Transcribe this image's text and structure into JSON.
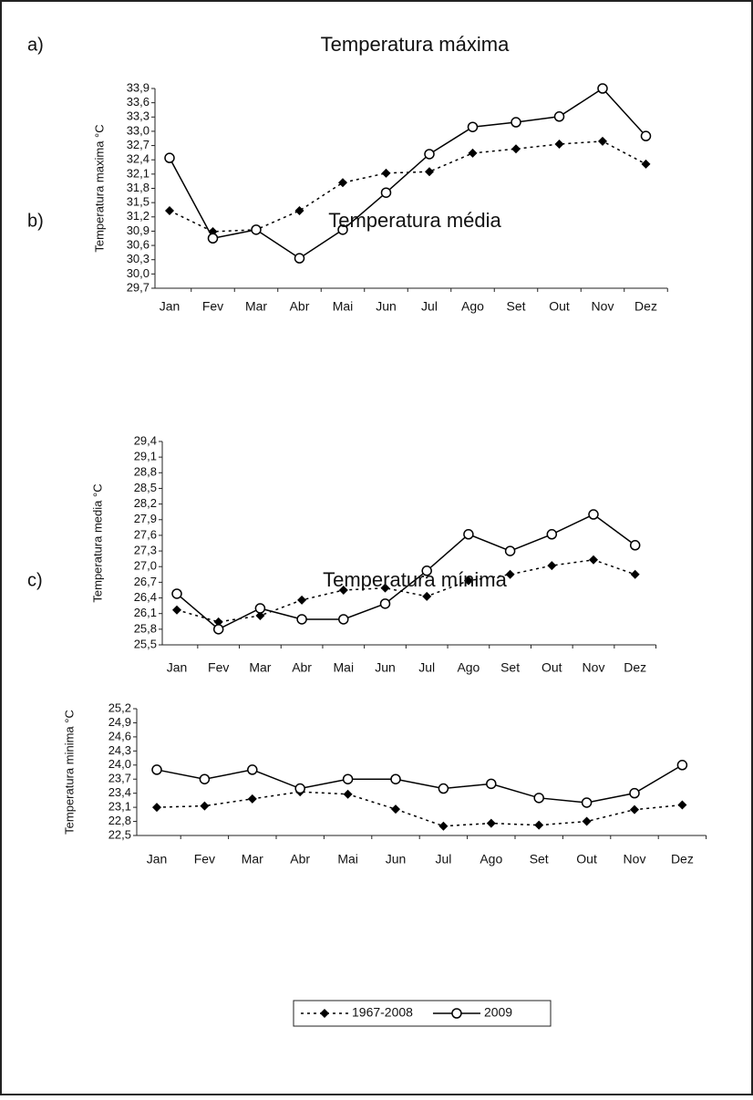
{
  "chart_data": [
    {
      "type": "line",
      "panel": "a)",
      "title": "Temperatura máxima",
      "y_label": "Temperatura maxima °C",
      "categories": [
        "Jan",
        "Fev",
        "Mar",
        "Abr",
        "Mai",
        "Jun",
        "Jul",
        "Ago",
        "Set",
        "Out",
        "Nov",
        "Dez"
      ],
      "ylim": [
        29.7,
        33.9
      ],
      "yticks": [
        {
          "value": 29.7,
          "label": "29,7"
        },
        {
          "value": 30.0,
          "label": "30,0"
        },
        {
          "value": 30.3,
          "label": "30,3"
        },
        {
          "value": 30.6,
          "label": "30,6"
        },
        {
          "value": 30.9,
          "label": "30,9"
        },
        {
          "value": 31.2,
          "label": "31,2"
        },
        {
          "value": 31.5,
          "label": "31,5"
        },
        {
          "value": 31.8,
          "label": "31,8"
        },
        {
          "value": 32.1,
          "label": "32,1"
        },
        {
          "value": 32.4,
          "label": "32,4"
        },
        {
          "value": 32.7,
          "label": "32,7"
        },
        {
          "value": 33.0,
          "label": "33,0"
        },
        {
          "value": 33.3,
          "label": "33,3"
        },
        {
          "value": 33.6,
          "label": "33,6"
        },
        {
          "value": 33.9,
          "label": "33,9"
        }
      ],
      "series": [
        {
          "color": "#000000",
          "marker": "diamond",
          "line_style": "dotted",
          "values": [
            31.33,
            30.89,
            30.93,
            31.33,
            31.92,
            32.12,
            32.15,
            32.54,
            32.63,
            32.73,
            32.79,
            32.31
          ]
        },
        {
          "color": "#000000",
          "marker": "circle",
          "line_style": "solid",
          "values": [
            32.44,
            30.75,
            30.93,
            30.33,
            30.93,
            31.71,
            32.52,
            33.09,
            33.19,
            33.31,
            33.9,
            32.9
          ]
        }
      ]
    },
    {
      "type": "line",
      "panel": "b)",
      "title": "Temperatura média",
      "y_label": "Temperatura media °C",
      "categories": [
        "Jan",
        "Fev",
        "Mar",
        "Abr",
        "Mai",
        "Jun",
        "Jul",
        "Ago",
        "Set",
        "Out",
        "Nov",
        "Dez"
      ],
      "ylim": [
        25.5,
        29.4
      ],
      "yticks": [
        {
          "value": 25.5,
          "label": "25,5"
        },
        {
          "value": 25.8,
          "label": "25,8"
        },
        {
          "value": 26.1,
          "label": "26,1"
        },
        {
          "value": 26.4,
          "label": "26,4"
        },
        {
          "value": 26.7,
          "label": "26,7"
        },
        {
          "value": 27.0,
          "label": "27,0"
        },
        {
          "value": 27.3,
          "label": "27,3"
        },
        {
          "value": 27.6,
          "label": "27,6"
        },
        {
          "value": 27.9,
          "label": "27,9"
        },
        {
          "value": 28.2,
          "label": "28,2"
        },
        {
          "value": 28.5,
          "label": "28,5"
        },
        {
          "value": 28.8,
          "label": "28,8"
        },
        {
          "value": 29.1,
          "label": "29,1"
        },
        {
          "value": 29.4,
          "label": "29,4"
        }
      ],
      "series": [
        {
          "color": "#000000",
          "marker": "diamond",
          "line_style": "dotted",
          "values": [
            26.17,
            25.94,
            26.06,
            26.36,
            26.55,
            26.59,
            26.43,
            26.73,
            26.85,
            27.02,
            27.13,
            26.85
          ]
        },
        {
          "color": "#000000",
          "marker": "circle",
          "line_style": "solid",
          "values": [
            26.48,
            25.8,
            26.2,
            25.99,
            25.99,
            26.29,
            26.92,
            27.62,
            27.3,
            27.62,
            28.0,
            27.41
          ]
        }
      ]
    },
    {
      "type": "line",
      "panel": "c)",
      "title": "Temperatura mínima",
      "y_label": "Temperatura minima °C",
      "categories": [
        "Jan",
        "Fev",
        "Mar",
        "Abr",
        "Mai",
        "Jun",
        "Jul",
        "Ago",
        "Set",
        "Out",
        "Nov",
        "Dez"
      ],
      "ylim": [
        22.5,
        25.2
      ],
      "yticks": [
        {
          "value": 22.5,
          "label": "22,5"
        },
        {
          "value": 22.8,
          "label": "22,8"
        },
        {
          "value": 23.1,
          "label": "23,1"
        },
        {
          "value": 23.4,
          "label": "23,4"
        },
        {
          "value": 23.7,
          "label": "23,7"
        },
        {
          "value": 24.0,
          "label": "24,0"
        },
        {
          "value": 24.3,
          "label": "24,3"
        },
        {
          "value": 24.6,
          "label": "24,6"
        },
        {
          "value": 24.9,
          "label": "24,9"
        },
        {
          "value": 25.2,
          "label": "25,2"
        }
      ],
      "series": [
        {
          "name": "1967-2008",
          "color": "#000000",
          "marker": "diamond",
          "line_style": "dotted",
          "values": [
            23.1,
            23.13,
            23.28,
            23.43,
            23.38,
            23.06,
            22.7,
            22.76,
            22.72,
            22.8,
            23.05,
            23.15
          ]
        },
        {
          "name": "2009",
          "color": "#000000",
          "marker": "circle",
          "line_style": "solid",
          "values": [
            23.9,
            23.7,
            23.9,
            23.5,
            23.7,
            23.7,
            23.5,
            23.6,
            23.3,
            23.2,
            23.4,
            24.0
          ]
        }
      ]
    }
  ]
}
